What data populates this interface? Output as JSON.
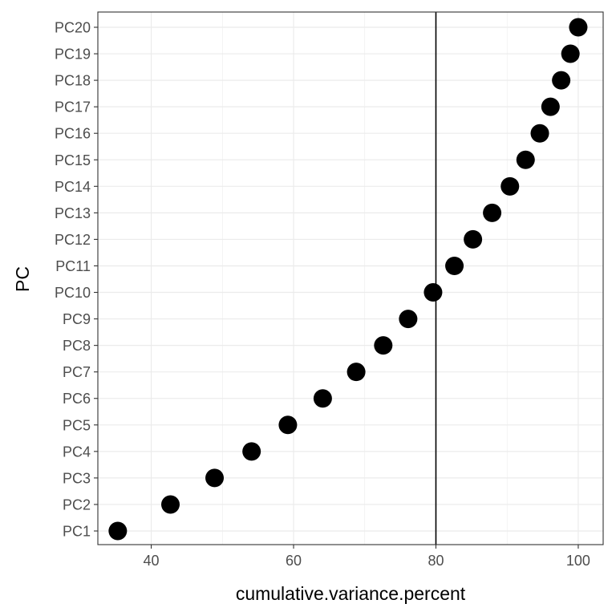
{
  "chart_data": {
    "type": "scatter",
    "xlabel": "cumulative.variance.percent",
    "ylabel": "PC",
    "xlim": [
      32.5,
      103.5
    ],
    "xticks": [
      40,
      60,
      80,
      100
    ],
    "categories": [
      "PC1",
      "PC2",
      "PC3",
      "PC4",
      "PC5",
      "PC6",
      "PC7",
      "PC8",
      "PC9",
      "PC10",
      "PC11",
      "PC12",
      "PC13",
      "PC14",
      "PC15",
      "PC16",
      "PC17",
      "PC18",
      "PC19",
      "PC20"
    ],
    "values": [
      35.3,
      42.7,
      48.9,
      54.1,
      59.2,
      64.1,
      68.8,
      72.6,
      76.1,
      79.6,
      82.6,
      85.2,
      87.9,
      90.4,
      92.6,
      94.6,
      96.1,
      97.6,
      98.9,
      100.0
    ],
    "reference_line": {
      "orientation": "vertical",
      "x": 80
    },
    "grid": true,
    "legend": "none",
    "colors": {
      "points": "#000000",
      "grid": "#ebebeb",
      "panel_border": "#333333",
      "reference_line": "#000000"
    }
  }
}
